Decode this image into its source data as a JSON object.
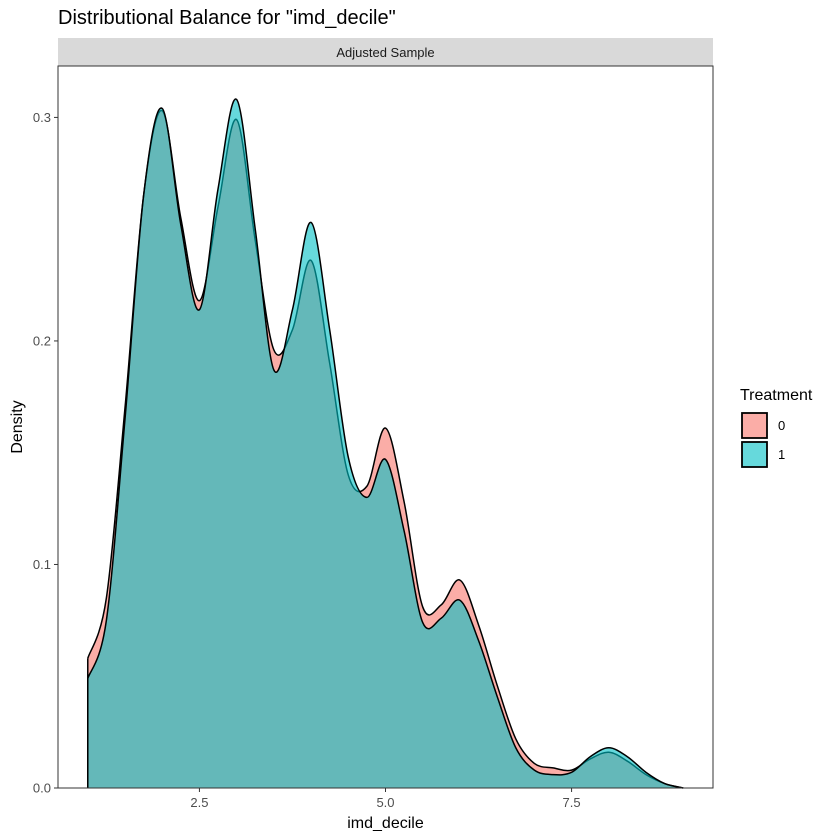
{
  "chart_data": {
    "type": "area",
    "title": "Distributional Balance for \"imd_decile\"",
    "facet_label": "Adjusted Sample",
    "xlabel": "imd_decile",
    "ylabel": "Density",
    "xlim": [
      0.6,
      9.4
    ],
    "ylim": [
      0,
      0.323
    ],
    "x_ticks": [
      2.5,
      5.0,
      7.5
    ],
    "x_tick_labels": [
      "2.5",
      "5.0",
      "7.5"
    ],
    "y_ticks": [
      0.0,
      0.1,
      0.2,
      0.3
    ],
    "y_tick_labels": [
      "0.0",
      "0.1",
      "0.2",
      "0.3"
    ],
    "legend": {
      "title": "Treatment",
      "position": "right"
    },
    "series": [
      {
        "name": "0",
        "color": "#F8766D",
        "x": [
          1.0,
          1.25,
          1.5,
          1.75,
          2.0,
          2.25,
          2.5,
          2.75,
          3.0,
          3.25,
          3.5,
          3.75,
          4.0,
          4.25,
          4.5,
          4.75,
          5.0,
          5.25,
          5.5,
          5.75,
          6.0,
          6.25,
          6.5,
          6.75,
          7.0,
          7.25,
          7.5,
          7.75,
          8.0,
          8.25,
          8.5,
          8.75,
          9.0
        ],
        "values": [
          0.058,
          0.085,
          0.17,
          0.265,
          0.303,
          0.255,
          0.218,
          0.26,
          0.299,
          0.245,
          0.196,
          0.205,
          0.236,
          0.19,
          0.14,
          0.135,
          0.161,
          0.128,
          0.081,
          0.082,
          0.093,
          0.073,
          0.046,
          0.022,
          0.011,
          0.009,
          0.008,
          0.013,
          0.016,
          0.012,
          0.006,
          0.002,
          0.0
        ]
      },
      {
        "name": "1",
        "color": "#00BFC4",
        "x": [
          1.0,
          1.25,
          1.5,
          1.75,
          2.0,
          2.25,
          2.5,
          2.75,
          3.0,
          3.25,
          3.5,
          3.75,
          4.0,
          4.25,
          4.5,
          4.75,
          5.0,
          5.25,
          5.5,
          5.75,
          6.0,
          6.25,
          6.5,
          6.75,
          7.0,
          7.25,
          7.5,
          7.75,
          8.0,
          8.25,
          8.5,
          8.75,
          9.0
        ],
        "values": [
          0.049,
          0.075,
          0.165,
          0.265,
          0.304,
          0.252,
          0.214,
          0.268,
          0.308,
          0.25,
          0.187,
          0.214,
          0.253,
          0.205,
          0.148,
          0.13,
          0.147,
          0.115,
          0.074,
          0.076,
          0.084,
          0.066,
          0.041,
          0.018,
          0.008,
          0.006,
          0.007,
          0.014,
          0.018,
          0.014,
          0.007,
          0.002,
          0.0
        ]
      }
    ]
  }
}
